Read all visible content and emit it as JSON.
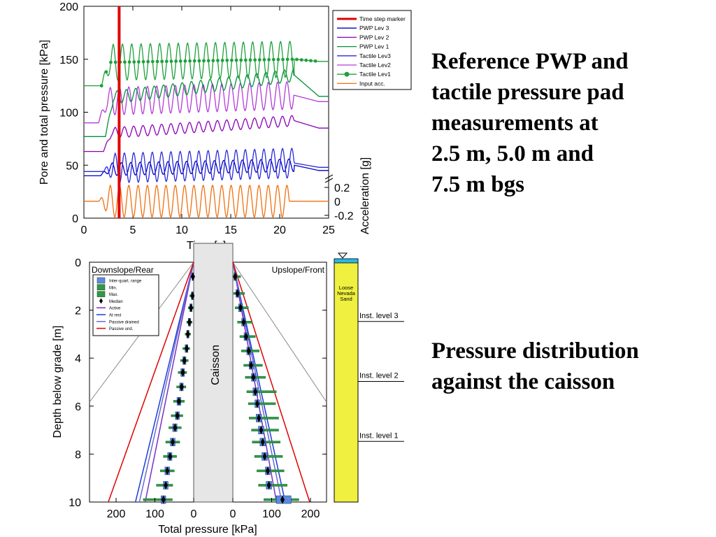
{
  "slide": {
    "heading_top": [
      "Reference PWP and",
      "tactile pressure pad",
      "measurements at",
      "2.5 m, 5.0 m and",
      "7.5 m bgs"
    ],
    "heading_bottom": [
      "Pressure distribution",
      "against the caisson"
    ]
  },
  "chart_data": [
    {
      "type": "line",
      "xlabel": "Time [s]",
      "ylabel": "Pore and total pressure [kPa]",
      "y2label": "Acceleration [g]",
      "xlim": [
        0,
        25
      ],
      "ylim": [
        0,
        200
      ],
      "xticks": [
        "0",
        "5",
        "10",
        "15",
        "20",
        "25"
      ],
      "yticks": [
        "0",
        "50",
        "100",
        "150",
        "200"
      ],
      "y2ticks": [
        "0.2",
        "0",
        "-0.2"
      ],
      "legend_position": "top-right",
      "time_step_marker_s": 3.6,
      "legend": [
        {
          "label": "Time step marker",
          "color": "#e00000"
        },
        {
          "label": "PWP Lev 3",
          "color": "#0000c8"
        },
        {
          "label": "PWP Lev 2",
          "color": "#8a00b8"
        },
        {
          "label": "PWP Lev 1",
          "color": "#00923a"
        },
        {
          "label": "Tactile Lev3",
          "color": "#2b2bd8"
        },
        {
          "label": "Tactile Lev2",
          "color": "#b23cd8"
        },
        {
          "label": "Tactile Lev1",
          "color": "#1fa03c"
        },
        {
          "label": "Input acc.",
          "color": "#f07010"
        }
      ],
      "series": [
        {
          "name": "Input acc.",
          "color": "#f07010",
          "kind": "osc",
          "start": 1.5,
          "end": 21,
          "pre": 16,
          "base": 16,
          "amp": 15,
          "period": 0.95,
          "drift": 0,
          "tail": 16
        },
        {
          "name": "PWP Lev 3",
          "color": "#0000c8",
          "kind": "osc",
          "start": 1.7,
          "end": 21.5,
          "pre": 40,
          "base": 46,
          "amp": 6,
          "period": 0.95,
          "drift": 4,
          "tail": 45
        },
        {
          "name": "Tactile Lev3",
          "color": "#2b2bd8",
          "kind": "osc",
          "start": 2.0,
          "end": 21.5,
          "pre": 44,
          "base": 47,
          "amp": 14,
          "period": 0.95,
          "drift": 5,
          "tail": 48
        },
        {
          "name": "PWP Lev 2",
          "color": "#8a00b8",
          "kind": "osc",
          "start": 2.0,
          "end": 21.5,
          "pre": 63,
          "base": 80,
          "amp": 5,
          "period": 0.95,
          "drift": 12,
          "tail": 85
        },
        {
          "name": "Tactile Lev2",
          "color": "#b23cd8",
          "kind": "osc",
          "start": 1.5,
          "end": 21.5,
          "pre": 90,
          "base": 110,
          "amp": 13,
          "period": 0.95,
          "drift": 6,
          "tail": 110
        },
        {
          "name": "PWP Lev 1",
          "color": "#00923a",
          "kind": "osc",
          "start": 2.2,
          "end": 21.5,
          "pre": 77,
          "base": 113,
          "amp": 6,
          "period": 0.95,
          "drift": 22,
          "tail": 115
        },
        {
          "name": "Tactile Lev1",
          "color": "#1fa03c",
          "kind": "osc",
          "start": 1.8,
          "end": 21.5,
          "pre": 125,
          "base": 147,
          "amp": 17,
          "period": 0.95,
          "drift": 3,
          "tail": 148,
          "markers": true
        }
      ]
    },
    {
      "type": "box",
      "xlabel": "Total pressure [kPa]",
      "ylabel": "Depth below grade [m]",
      "yticks": [
        "0",
        "2",
        "4",
        "6",
        "8",
        "10"
      ],
      "ylim": [
        0,
        10
      ],
      "left_xticks": [
        "200",
        "100",
        "0"
      ],
      "right_xticks": [
        "0",
        "100",
        "200"
      ],
      "left_title": "Downslope/Rear",
      "right_title": "Upslope/Front",
      "caisson_label": "Caisson",
      "legend": [
        {
          "label": "Inter-quart. range",
          "kind": "box",
          "color": "#5b8be0"
        },
        {
          "label": "Min.",
          "kind": "box",
          "color": "#2e9a46"
        },
        {
          "label": "Max.",
          "kind": "box",
          "color": "#2e9a46"
        },
        {
          "label": "Median",
          "kind": "diamond",
          "color": "#000000"
        },
        {
          "label": "Active",
          "kind": "line",
          "color": "#7a30c0"
        },
        {
          "label": "At rest",
          "kind": "line",
          "color": "#1a3cd8"
        },
        {
          "label": "Passive drained",
          "kind": "line",
          "color": "#6a6ad0"
        },
        {
          "label": "Passive und.",
          "kind": "line",
          "color": "#e00000"
        }
      ],
      "reference_lines": {
        "active": {
          "color": "#7a30c0",
          "slope": 12.5
        },
        "at_rest": {
          "color": "#1a3cd8",
          "slope": 15
        },
        "passive_drained": {
          "color": "#6a6ad0",
          "slope": 14
        },
        "passive_undrained": {
          "color": "#e00000",
          "slope": 22
        }
      },
      "rear_boxes": [
        {
          "depth": 0.6,
          "median": 2,
          "q1": 0,
          "q3": 4,
          "min": 0,
          "max": 6
        },
        {
          "depth": 1.4,
          "median": 3,
          "q1": 1,
          "q3": 6,
          "min": 0,
          "max": 10
        },
        {
          "depth": 1.9,
          "median": 7,
          "q1": 4,
          "q3": 10,
          "min": 0,
          "max": 14
        },
        {
          "depth": 2.5,
          "median": 11,
          "q1": 8,
          "q3": 14,
          "min": 4,
          "max": 18
        },
        {
          "depth": 3.0,
          "median": 15,
          "q1": 12,
          "q3": 18,
          "min": 8,
          "max": 22
        },
        {
          "depth": 3.6,
          "median": 18,
          "q1": 15,
          "q3": 22,
          "min": 10,
          "max": 28
        },
        {
          "depth": 4.1,
          "median": 24,
          "q1": 20,
          "q3": 28,
          "min": 14,
          "max": 34
        },
        {
          "depth": 4.6,
          "median": 28,
          "q1": 24,
          "q3": 33,
          "min": 18,
          "max": 40
        },
        {
          "depth": 5.2,
          "median": 31,
          "q1": 27,
          "q3": 36,
          "min": 20,
          "max": 44
        },
        {
          "depth": 5.8,
          "median": 38,
          "q1": 33,
          "q3": 43,
          "min": 24,
          "max": 52
        },
        {
          "depth": 6.4,
          "median": 42,
          "q1": 37,
          "q3": 47,
          "min": 28,
          "max": 58
        },
        {
          "depth": 6.9,
          "median": 48,
          "q1": 43,
          "q3": 54,
          "min": 32,
          "max": 64
        },
        {
          "depth": 7.5,
          "median": 54,
          "q1": 48,
          "q3": 60,
          "min": 36,
          "max": 72
        },
        {
          "depth": 8.1,
          "median": 61,
          "q1": 56,
          "q3": 67,
          "min": 44,
          "max": 78
        },
        {
          "depth": 8.7,
          "median": 68,
          "q1": 62,
          "q3": 74,
          "min": 50,
          "max": 86
        },
        {
          "depth": 9.3,
          "median": 72,
          "q1": 66,
          "q3": 78,
          "min": 54,
          "max": 96
        },
        {
          "depth": 9.9,
          "median": 78,
          "q1": 72,
          "q3": 84,
          "min": 55,
          "max": 130
        }
      ],
      "front_boxes": [
        {
          "depth": 0.6,
          "median": 6,
          "q1": 3,
          "q3": 9,
          "min": 0,
          "max": 20
        },
        {
          "depth": 1.3,
          "median": 12,
          "q1": 8,
          "q3": 16,
          "min": 2,
          "max": 30
        },
        {
          "depth": 1.9,
          "median": 20,
          "q1": 15,
          "q3": 24,
          "min": 6,
          "max": 40
        },
        {
          "depth": 2.5,
          "median": 28,
          "q1": 23,
          "q3": 33,
          "min": 12,
          "max": 50
        },
        {
          "depth": 3.1,
          "median": 34,
          "q1": 29,
          "q3": 39,
          "min": 18,
          "max": 58
        },
        {
          "depth": 3.7,
          "median": 41,
          "q1": 36,
          "q3": 46,
          "min": 22,
          "max": 68
        },
        {
          "depth": 4.3,
          "median": 47,
          "q1": 42,
          "q3": 53,
          "min": 28,
          "max": 76
        },
        {
          "depth": 4.8,
          "median": 53,
          "q1": 48,
          "q3": 59,
          "min": 32,
          "max": 84
        },
        {
          "depth": 5.4,
          "median": 58,
          "q1": 52,
          "q3": 64,
          "min": 36,
          "max": 112
        },
        {
          "depth": 5.9,
          "median": 63,
          "q1": 57,
          "q3": 69,
          "min": 40,
          "max": 110
        },
        {
          "depth": 6.5,
          "median": 67,
          "q1": 60,
          "q3": 74,
          "min": 42,
          "max": 118
        },
        {
          "depth": 7.0,
          "median": 73,
          "q1": 66,
          "q3": 80,
          "min": 48,
          "max": 118
        },
        {
          "depth": 7.5,
          "median": 77,
          "q1": 70,
          "q3": 84,
          "min": 50,
          "max": 122
        },
        {
          "depth": 8.1,
          "median": 82,
          "q1": 75,
          "q3": 89,
          "min": 56,
          "max": 128
        },
        {
          "depth": 8.7,
          "median": 90,
          "q1": 84,
          "q3": 96,
          "min": 62,
          "max": 132
        },
        {
          "depth": 9.3,
          "median": 93,
          "q1": 86,
          "q3": 100,
          "min": 66,
          "max": 140
        },
        {
          "depth": 9.9,
          "median": 128,
          "q1": 112,
          "q3": 150,
          "min": 80,
          "max": 170
        }
      ]
    },
    {
      "type": "profile",
      "soil_label": [
        "Loose",
        "Nevada",
        "Sand"
      ],
      "instrument_levels": [
        {
          "label": "Inst. level 3",
          "depth_m": 2.5
        },
        {
          "label": "Inst. level 2",
          "depth_m": 5.0
        },
        {
          "label": "Inst. level 1",
          "depth_m": 7.5
        }
      ],
      "soil_color": "#f0f040",
      "water_color": "#2ab8e8"
    }
  ]
}
